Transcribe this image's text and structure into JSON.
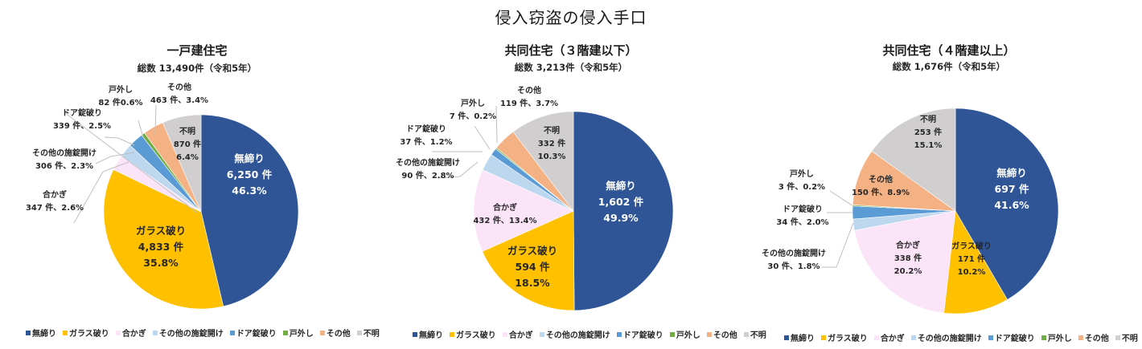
{
  "title": "侵入窃盗の侵入手口",
  "legend": [
    {
      "label": "無締り",
      "color": "#2F5597"
    },
    {
      "label": "ガラス破り",
      "color": "#FFC000"
    },
    {
      "label": "合かぎ",
      "color": "#FCE4F8"
    },
    {
      "label": "その他の施錠開け",
      "color": "#BDD7EE"
    },
    {
      "label": "ドア錠破り",
      "color": "#5B9BD5"
    },
    {
      "label": "戸外し",
      "color": "#70AD47"
    },
    {
      "label": "その他",
      "color": "#F4B183"
    },
    {
      "label": "不明",
      "color": "#D0CECE"
    }
  ],
  "panels": [
    {
      "title": "一戸建住宅",
      "total": "総数 13,490件（令和5年）",
      "labels": [
        {
          "name": "無締り",
          "line1": "無締り",
          "line2": "6,250 件",
          "line3": "46.3%"
        },
        {
          "name": "ガラス破り",
          "line1": "ガラス破り",
          "line2": "4,833 件",
          "line3": "35.8%"
        },
        {
          "name": "合かぎ",
          "line1": "合かぎ",
          "line2": "347 件、2.6%"
        },
        {
          "name": "その他の施錠開け",
          "line1": "その他の施錠開け",
          "line2": "306 件、2.3%"
        },
        {
          "name": "ドア錠破り",
          "line1": "ドア錠破り",
          "line2": "339 件、2.5%"
        },
        {
          "name": "戸外し",
          "line1": "戸外し",
          "line2": "82 件0.6%"
        },
        {
          "name": "その他",
          "line1": "その他",
          "line2": "463 件、3.4%"
        },
        {
          "name": "不明",
          "line1": "不明",
          "line2": "870 件",
          "line3": "6.4%"
        }
      ]
    },
    {
      "title": "共同住宅（３階建以下）",
      "total": "総数 3,213件（令和5年）",
      "labels": [
        {
          "name": "無締り",
          "line1": "無締り",
          "line2": "1,602 件",
          "line3": "49.9%"
        },
        {
          "name": "ガラス破り",
          "line1": "ガラス破り",
          "line2": "594 件",
          "line3": "18.5%"
        },
        {
          "name": "合かぎ",
          "line1": "合かぎ",
          "line2": "432 件、13.4%"
        },
        {
          "name": "その他の施錠開け",
          "line1": "その他の施錠開け",
          "line2": "90 件、2.8%"
        },
        {
          "name": "ドア錠破り",
          "line1": "ドア錠破り",
          "line2": "37 件、1.2%"
        },
        {
          "name": "戸外し",
          "line1": "戸外し",
          "line2": "7 件、0.2%"
        },
        {
          "name": "その他",
          "line1": "その他",
          "line2": "119 件、3.7%"
        },
        {
          "name": "不明",
          "line1": "不明",
          "line2": "332 件",
          "line3": "10.3%"
        }
      ]
    },
    {
      "title": "共同住宅（４階建以上）",
      "total": "総数 1,676件（令和5年）",
      "labels": [
        {
          "name": "無締り",
          "line1": "無締り",
          "line2": "697 件",
          "line3": "41.6%"
        },
        {
          "name": "ガラス破り",
          "line1": "ガラス破り",
          "line2": "171 件",
          "line3": "10.2%"
        },
        {
          "name": "合かぎ",
          "line1": "合かぎ",
          "line2": "338 件",
          "line3": "20.2%"
        },
        {
          "name": "その他の施錠開け",
          "line1": "その他の施錠開け",
          "line2": "30 件、1.8%"
        },
        {
          "name": "ドア錠破り",
          "line1": "ドア錠破り",
          "line2": "34 件、2.0%"
        },
        {
          "name": "戸外し",
          "line1": "戸外し",
          "line2": "3 件、0.2%"
        },
        {
          "name": "その他",
          "line1": "その他",
          "line2": "150 件、8.9%"
        },
        {
          "name": "不明",
          "line1": "不明",
          "line2": "253 件",
          "line3": "15.1%"
        }
      ]
    }
  ],
  "chart_data": [
    {
      "type": "pie",
      "title": "一戸建住宅",
      "subtitle": "総数 13,490件（令和5年）",
      "categories": [
        "無締り",
        "ガラス破り",
        "合かぎ",
        "その他の施錠開け",
        "ドア錠破り",
        "戸外し",
        "その他",
        "不明"
      ],
      "values": [
        6250,
        4833,
        347,
        306,
        339,
        82,
        463,
        870
      ],
      "percentages": [
        46.3,
        35.8,
        2.6,
        2.3,
        2.5,
        0.6,
        3.4,
        6.4
      ],
      "colors": [
        "#2F5597",
        "#FFC000",
        "#FCE4F8",
        "#BDD7EE",
        "#5B9BD5",
        "#70AD47",
        "#F4B183",
        "#D0CECE"
      ],
      "legend_position": "bottom"
    },
    {
      "type": "pie",
      "title": "共同住宅（３階建以下）",
      "subtitle": "総数 3,213件（令和5年）",
      "categories": [
        "無締り",
        "ガラス破り",
        "合かぎ",
        "その他の施錠開け",
        "ドア錠破り",
        "戸外し",
        "その他",
        "不明"
      ],
      "values": [
        1602,
        594,
        432,
        90,
        37,
        7,
        119,
        332
      ],
      "percentages": [
        49.9,
        18.5,
        13.4,
        2.8,
        1.2,
        0.2,
        3.7,
        10.3
      ],
      "colors": [
        "#2F5597",
        "#FFC000",
        "#FCE4F8",
        "#BDD7EE",
        "#5B9BD5",
        "#70AD47",
        "#F4B183",
        "#D0CECE"
      ],
      "legend_position": "bottom"
    },
    {
      "type": "pie",
      "title": "共同住宅（４階建以上）",
      "subtitle": "総数 1,676件（令和5年）",
      "categories": [
        "無締り",
        "ガラス破り",
        "合かぎ",
        "その他の施錠開け",
        "ドア錠破り",
        "戸外し",
        "その他",
        "不明"
      ],
      "values": [
        697,
        171,
        338,
        30,
        34,
        3,
        150,
        253
      ],
      "percentages": [
        41.6,
        10.2,
        20.2,
        1.8,
        2.0,
        0.2,
        8.9,
        15.1
      ],
      "colors": [
        "#2F5597",
        "#FFC000",
        "#FCE4F8",
        "#BDD7EE",
        "#5B9BD5",
        "#70AD47",
        "#F4B183",
        "#D0CECE"
      ],
      "legend_position": "bottom"
    }
  ]
}
